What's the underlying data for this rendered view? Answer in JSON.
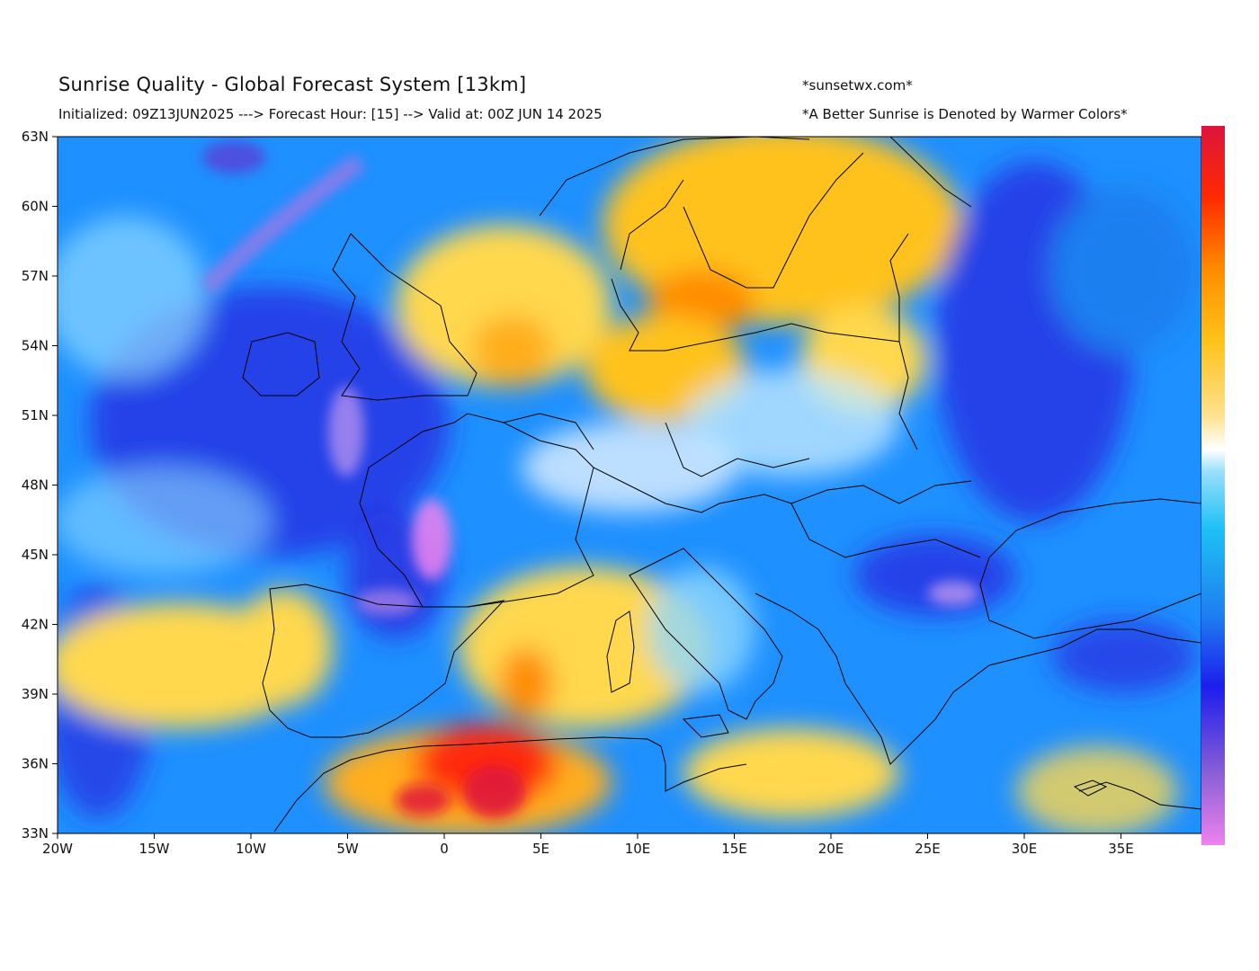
{
  "header": {
    "title": "Sunrise Quality - Global Forecast System [13km]",
    "subtitle": "Initialized: 09Z13JUN2025 ---> Forecast Hour: [15] --> Valid at: 00Z JUN 14 2025",
    "site": "*sunsetwx.com*",
    "note": "*A Better Sunrise is Denoted by Warmer Colors*"
  },
  "map": {
    "region": "Europe / North Africa",
    "lon_range": [
      -20,
      39
    ],
    "lat_range": [
      33,
      63
    ],
    "lat_ticks": [
      "63N",
      "60N",
      "57N",
      "54N",
      "51N",
      "48N",
      "45N",
      "42N",
      "39N",
      "36N",
      "33N"
    ],
    "lon_ticks": [
      "20W",
      "15W",
      "10W",
      "5W",
      "0",
      "5E",
      "10E",
      "15E",
      "20E",
      "25E",
      "30E",
      "35E"
    ],
    "colorbar": {
      "orientation": "vertical",
      "placement": "right",
      "colors": [
        "#ee82ee",
        "#8a5fd6",
        "#1d1ded",
        "#1e7ff0",
        "#1ec0f5",
        "#9be0fb",
        "#ffffff",
        "#ffe08a",
        "#ffc21a",
        "#ff8c00",
        "#ff2a00",
        "#dc143c"
      ]
    },
    "palette": {
      "ocean_blue": "#1e90ff",
      "deep_blue": "#2a2ae0",
      "light_blue": "#8ed8ff",
      "white": "#ffffff",
      "yellow": "#ffd84d",
      "orange": "#ffae1a",
      "red": "#ff2a10",
      "violet": "#9a78e6"
    }
  }
}
